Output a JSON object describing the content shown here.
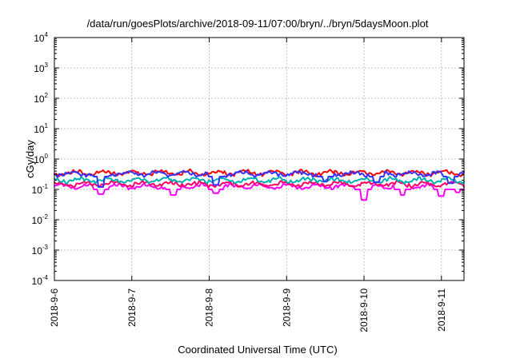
{
  "chart_data": {
    "type": "line",
    "title": "/data/run/goesPlots/archive/2018-09-11/07:00/bryn/../bryn/5daysMoon.plot",
    "xlabel": "Coordinated Universal Time (UTC)",
    "ylabel": "cGy/day",
    "y_scale": "log",
    "ylim": [
      0.0001,
      10000
    ],
    "y_ticks": [
      {
        "base": "10",
        "exp": "-4"
      },
      {
        "base": "10",
        "exp": "-3"
      },
      {
        "base": "10",
        "exp": "-2"
      },
      {
        "base": "10",
        "exp": "-1"
      },
      {
        "base": "10",
        "exp": "0"
      },
      {
        "base": "10",
        "exp": "1"
      },
      {
        "base": "10",
        "exp": "2"
      },
      {
        "base": "10",
        "exp": "3"
      },
      {
        "base": "10",
        "exp": "4"
      }
    ],
    "xlim": [
      "2018-09-06 00:00",
      "2018-09-11 07:00"
    ],
    "x_ticks": [
      "2018-9-6",
      "2018-9-7",
      "2018-9-8",
      "2018-9-9",
      "2018-9-10",
      "2018-9-11"
    ],
    "grid": true,
    "series": [
      {
        "color": "#ff00ff",
        "typical": 0.125,
        "dips": [
          {
            "t": "2018-09-06 14:30",
            "v": 0.07
          },
          {
            "t": "2018-09-07 13:00",
            "v": 0.065
          },
          {
            "t": "2018-09-08 02:10",
            "v": 0.075
          },
          {
            "t": "2018-09-10 00:00",
            "v": 0.045
          },
          {
            "t": "2018-09-10 12:00",
            "v": 0.065
          },
          {
            "t": "2018-09-11 00:00",
            "v": 0.06
          },
          {
            "t": "2018-09-11 05:00",
            "v": 0.08
          }
        ]
      },
      {
        "color": "#ff0066",
        "typical": 0.15,
        "dips": []
      },
      {
        "color": "#00b0b0",
        "typical": 0.2,
        "dips": []
      },
      {
        "color": "#ff0000",
        "typical": 0.35,
        "dips": []
      },
      {
        "color": "#3333ff",
        "typical": 0.33,
        "dips": [
          {
            "t": "2018-09-06 14:30",
            "v": 0.12
          },
          {
            "t": "2018-09-08 02:10",
            "v": 0.14
          },
          {
            "t": "2018-09-09 12:00",
            "v": 0.18
          },
          {
            "t": "2018-09-10 04:00",
            "v": 0.17
          },
          {
            "t": "2018-09-11 03:00",
            "v": 0.16
          }
        ]
      }
    ]
  }
}
